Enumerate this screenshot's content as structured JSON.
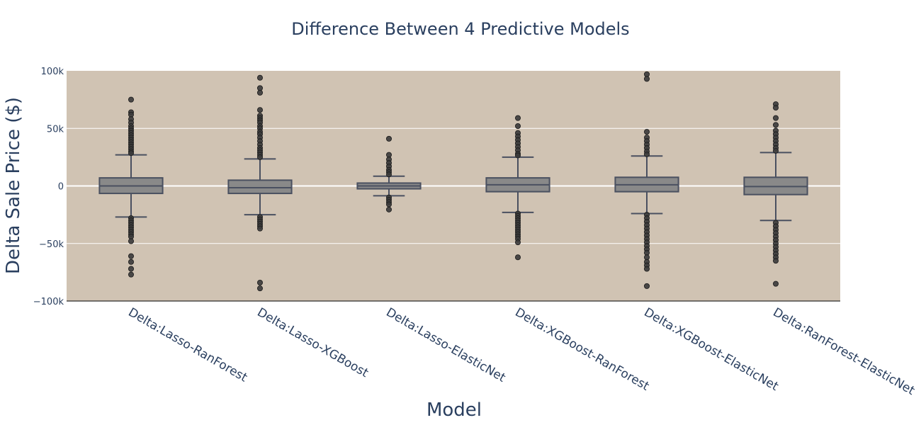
{
  "chart_data": {
    "type": "box",
    "title": "Difference Between 4 Predictive Models",
    "xlabel": "Model",
    "ylabel": "Delta Sale Price ($)",
    "ylim": [
      -100000,
      100000
    ],
    "yticks": [
      {
        "value": 100000,
        "label": "100k"
      },
      {
        "value": 50000,
        "label": "50k"
      },
      {
        "value": 0,
        "label": "0"
      },
      {
        "value": -50000,
        "label": "−50k"
      },
      {
        "value": -100000,
        "label": "−100k"
      }
    ],
    "grid": true,
    "colors": {
      "plot_bg": "#d0c3b3",
      "box_fill": "#898989",
      "box_line": "#4a5060",
      "outlier": "#3a3a3a",
      "grid": "#ffffff",
      "text": "#2a3f5f"
    },
    "categories": [
      "Delta:Lasso-RanForest",
      "Delta:Lasso-XGBoost",
      "Delta:Lasso-ElasticNet",
      "Delta:XGBoost-RanForest",
      "Delta:XGBoost-ElasticNet",
      "Delta:RanForest-ElasticNet"
    ],
    "boxes": [
      {
        "q1": -6500,
        "median": 0,
        "q3": 7000,
        "lower_fence": -27000,
        "upper_fence": 27000,
        "outliers": [
          75000,
          64000,
          62000,
          58000,
          55000,
          52000,
          50000,
          48000,
          46000,
          44000,
          42000,
          40000,
          38000,
          36000,
          34000,
          32000,
          30000,
          28500,
          -28000,
          -30000,
          -32000,
          -34000,
          -36000,
          -38000,
          -40000,
          -42000,
          -44000,
          -48000,
          -61000,
          -66000,
          -72000,
          -77000
        ]
      },
      {
        "q1": -6500,
        "median": -1500,
        "q3": 5000,
        "lower_fence": -25000,
        "upper_fence": 23500,
        "outliers": [
          94000,
          85000,
          81000,
          66000,
          61000,
          59000,
          57000,
          55000,
          52000,
          50000,
          47000,
          45000,
          42000,
          39000,
          36000,
          33000,
          31000,
          29000,
          27000,
          25000,
          -27000,
          -29000,
          -31000,
          -33000,
          -35000,
          -37000,
          -84000,
          -89000
        ]
      },
      {
        "q1": -2500,
        "median": 0,
        "q3": 2500,
        "lower_fence": -8500,
        "upper_fence": 8500,
        "outliers": [
          41000,
          27000,
          23000,
          20000,
          17000,
          14000,
          12000,
          10000,
          -10000,
          -12000,
          -14000,
          -16000,
          -20500
        ]
      },
      {
        "q1": -5000,
        "median": 1000,
        "q3": 7000,
        "lower_fence": -23000,
        "upper_fence": 25000,
        "outliers": [
          59000,
          52000,
          46000,
          43000,
          40000,
          37000,
          34000,
          31000,
          28000,
          26500,
          -24000,
          -26000,
          -28000,
          -30000,
          -32000,
          -34000,
          -36000,
          -38000,
          -40000,
          -42000,
          -44000,
          -46000,
          -49000,
          -62000
        ]
      },
      {
        "q1": -5000,
        "median": 1000,
        "q3": 7500,
        "lower_fence": -24000,
        "upper_fence": 26000,
        "outliers": [
          97000,
          93000,
          47000,
          42000,
          39000,
          36000,
          33000,
          30000,
          27500,
          -25000,
          -28000,
          -31000,
          -34000,
          -37000,
          -40000,
          -43000,
          -46000,
          -49000,
          -52000,
          -55000,
          -58000,
          -62000,
          -66000,
          -69000,
          -72000,
          -87000
        ]
      },
      {
        "q1": -7500,
        "median": -500,
        "q3": 7500,
        "lower_fence": -30000,
        "upper_fence": 29000,
        "outliers": [
          71000,
          68000,
          59000,
          53000,
          48000,
          45000,
          42000,
          39000,
          36000,
          33000,
          30500,
          -32000,
          -35000,
          -38000,
          -41000,
          -44000,
          -47000,
          -50000,
          -53000,
          -56000,
          -59000,
          -62000,
          -65000,
          -85000
        ]
      }
    ]
  }
}
